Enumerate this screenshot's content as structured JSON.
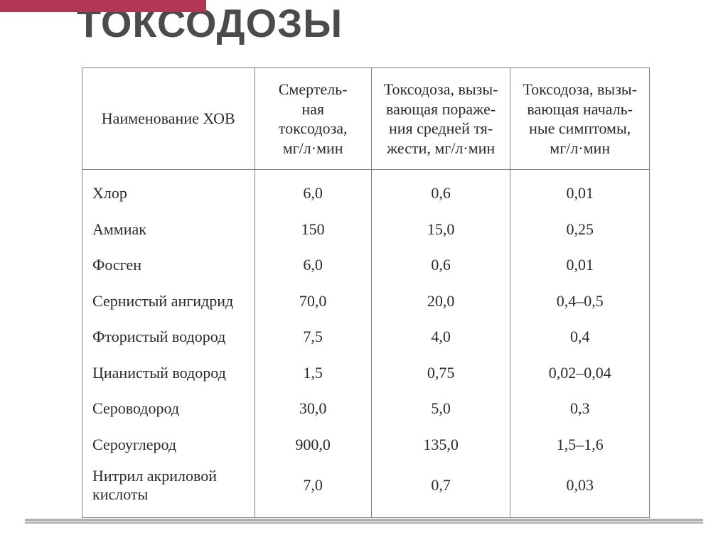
{
  "title": "Токсодозы",
  "colors": {
    "accent": "#b33657",
    "title_text": "#4b4b4b",
    "border": "#808080",
    "rule": "#b0b0b0",
    "background": "#ffffff",
    "text": "#2a2a2a"
  },
  "typography": {
    "title_font": "Impact",
    "title_size_pt": 42,
    "body_font": "Times New Roman",
    "body_size_pt": 16
  },
  "table": {
    "type": "table",
    "column_widths_pct": [
      31,
      21,
      25,
      25
    ],
    "columns": [
      "Наименование ХОВ",
      "Смертель-\nная\nтоксодоза,\nмг/л·мин",
      "Токсодоза, вызы-\nвающая пораже-\nния средней тя-\nжести, мг/л·мин",
      "Токсодоза, вызы-\nвающая началь-\nные симптомы,\nмг/л·мин"
    ],
    "rows": [
      {
        "name": "Хлор",
        "lethal": "6,0",
        "medium": "0,6",
        "initial": "0,01"
      },
      {
        "name": "Аммиак",
        "lethal": "150",
        "medium": "15,0",
        "initial": "0,25"
      },
      {
        "name": "Фосген",
        "lethal": "6,0",
        "medium": "0,6",
        "initial": "0,01"
      },
      {
        "name": "Сернистый ангидрид",
        "lethal": "70,0",
        "medium": "20,0",
        "initial": "0,4–0,5"
      },
      {
        "name": "Фтористый водород",
        "lethal": "7,5",
        "medium": "4,0",
        "initial": "0,4"
      },
      {
        "name": "Цианистый водород",
        "lethal": "1,5",
        "medium": "0,75",
        "initial": "0,02–0,04"
      },
      {
        "name": "Сероводород",
        "lethal": "30,0",
        "medium": "5,0",
        "initial": "0,3"
      },
      {
        "name": "Сероуглерод",
        "lethal": "900,0",
        "medium": "135,0",
        "initial": "1,5–1,6"
      },
      {
        "name": "Нитрил акриловой\nкислоты",
        "lethal": "7,0",
        "medium": "0,7",
        "initial": "0,03"
      }
    ]
  }
}
